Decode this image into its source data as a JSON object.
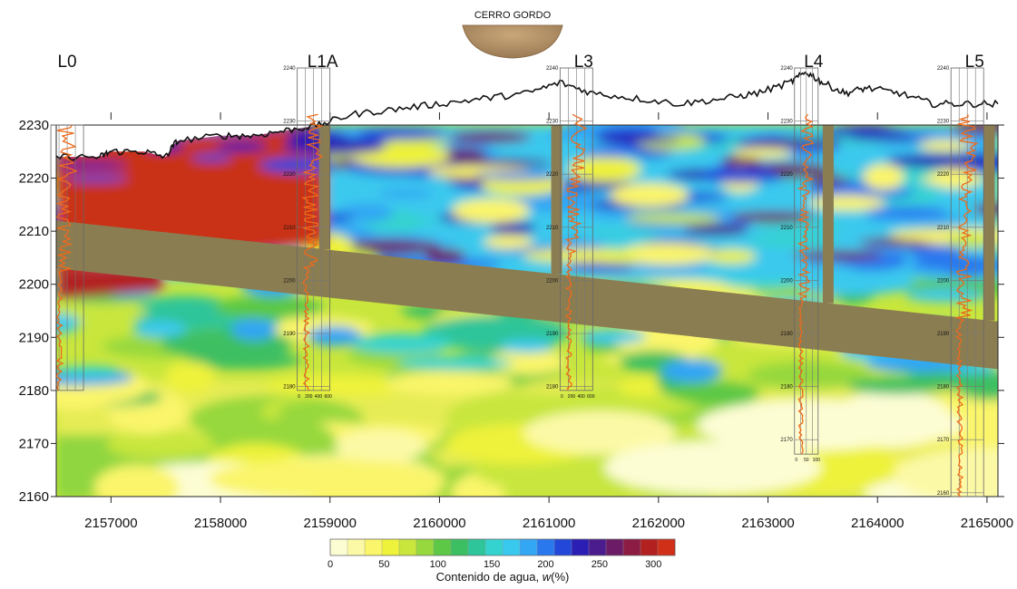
{
  "chart_data": {
    "type": "heatmap",
    "title": "",
    "top_label": "CERRO GORDO",
    "xlabel": "",
    "ylabel": "",
    "xlim": [
      2156500,
      2165100
    ],
    "ylim": [
      2160,
      2230
    ],
    "x_ticks": [
      "2157000",
      "2158000",
      "2159000",
      "2160000",
      "2161000",
      "2162000",
      "2163000",
      "2164000",
      "2165000"
    ],
    "y_ticks": [
      "2160",
      "2170",
      "2180",
      "2190",
      "2200",
      "2210",
      "2220",
      "2230"
    ],
    "colorbar": {
      "label_prefix": "Contenido de agua, ",
      "label_var": "w",
      "label_suffix": "(%)",
      "min": 0,
      "max": 320,
      "ticks": [
        "0",
        "50",
        "100",
        "150",
        "200",
        "250",
        "300"
      ],
      "colors": [
        "#fdfdd4",
        "#fcf9a6",
        "#faf56a",
        "#eef23a",
        "#c8e63c",
        "#96d83e",
        "#5cc845",
        "#3cbf62",
        "#2fc59a",
        "#35d3cf",
        "#3ac9ee",
        "#33a6f4",
        "#2a78ee",
        "#2347d9",
        "#2a1eb4",
        "#4a1c8e",
        "#6c1c66",
        "#8c1c44",
        "#b22020",
        "#d03018"
      ]
    },
    "boreholes": [
      {
        "name": "L0",
        "x": 2156600
      },
      {
        "name": "L1A",
        "x": 2158850
      },
      {
        "name": "L3",
        "x": 2161250
      },
      {
        "name": "L4",
        "x": 2163350
      },
      {
        "name": "L5",
        "x": 2164820
      }
    ],
    "borehole_scales": {
      "L1A": {
        "top": "2240",
        "ticks": [
          "2240",
          "2230",
          "2220",
          "2210",
          "2200",
          "2190",
          "2180"
        ],
        "x_ticks": [
          "0",
          "200",
          "400",
          "600"
        ]
      },
      "L3": {
        "top": "2240",
        "ticks": [
          "2240",
          "2230",
          "2220",
          "2210",
          "2200",
          "2190",
          "2180"
        ],
        "x_ticks": [
          "0",
          "200",
          "400",
          "600"
        ]
      },
      "L4": {
        "top": "2240",
        "ticks": [
          "2240",
          "2230",
          "2220",
          "2210",
          "2200",
          "2190",
          "2180",
          "2170"
        ],
        "x_ticks": [
          "0",
          "50",
          "100"
        ]
      },
      "L5": {
        "top": "2240",
        "ticks": [
          "2240",
          "2230",
          "2220",
          "2210",
          "2200",
          "2190",
          "2180",
          "2170",
          "2160"
        ],
        "x_ticks": []
      }
    },
    "impermeable_layer": {
      "top": [
        [
          2156500,
          2212
        ],
        [
          2165100,
          2193
        ]
      ],
      "bottom": [
        [
          2156500,
          2203
        ],
        [
          2165100,
          2184
        ]
      ]
    },
    "vertical_walls": [
      2158950,
      2161070,
      2163550,
      2165020
    ],
    "ground_surface": [
      [
        2156500,
        2224
      ],
      [
        2156900,
        2224
      ],
      [
        2157000,
        2225
      ],
      [
        2157300,
        2225
      ],
      [
        2157500,
        2224
      ],
      [
        2157600,
        2227
      ],
      [
        2158000,
        2228
      ],
      [
        2158300,
        2228
      ],
      [
        2158600,
        2229
      ],
      [
        2158900,
        2230
      ],
      [
        2159200,
        2232
      ],
      [
        2159600,
        2233
      ],
      [
        2160000,
        2234
      ],
      [
        2160400,
        2235
      ],
      [
        2160800,
        2236
      ],
      [
        2161100,
        2238
      ],
      [
        2161400,
        2236
      ],
      [
        2161800,
        2235
      ],
      [
        2162200,
        2234
      ],
      [
        2162600,
        2235
      ],
      [
        2162900,
        2236
      ],
      [
        2163200,
        2238
      ],
      [
        2163350,
        2240
      ],
      [
        2163500,
        2238
      ],
      [
        2163700,
        2236
      ],
      [
        2163900,
        2237
      ],
      [
        2164200,
        2236
      ],
      [
        2164500,
        2234
      ],
      [
        2164800,
        2234
      ],
      [
        2165100,
        2234
      ]
    ]
  }
}
